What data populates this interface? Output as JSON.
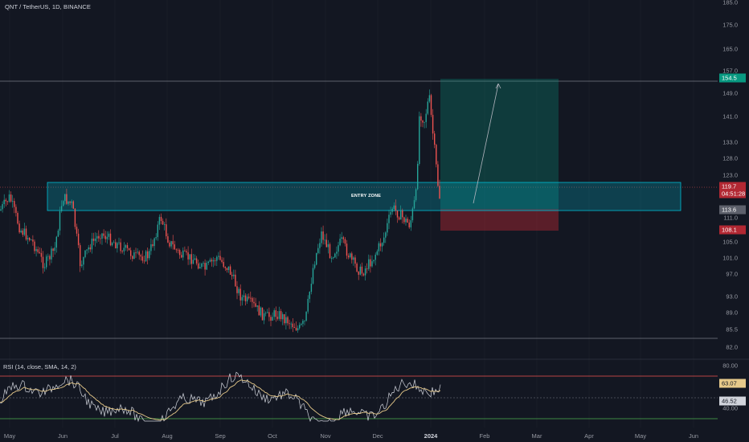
{
  "header": {
    "symbol_line": "QNT / TetherUS, 1D, BINANCE"
  },
  "indicator": {
    "rsi_line": "RSI (14, close, SMA, 14, 2)"
  },
  "price_axis": {
    "ticks": [
      "185.0",
      "175.0",
      "165.0",
      "157.0",
      "149.0",
      "141.0",
      "133.0",
      "128.0",
      "123.0",
      "116.0",
      "111.0",
      "105.0",
      "101.0",
      "97.0",
      "93.0",
      "89.0",
      "85.5",
      "82.0"
    ],
    "rsi_ticks": [
      "80.00",
      "40.00"
    ]
  },
  "tags": {
    "target": "154.5",
    "current_price": "119.7",
    "countdown": "04:51:28",
    "entry": "113.6",
    "stop": "108.1",
    "rsi_value": "63.07",
    "rsi_sma": "46.52"
  },
  "time_axis": [
    {
      "label": "May",
      "bold": false
    },
    {
      "label": "Jun",
      "bold": false
    },
    {
      "label": "Jul",
      "bold": false
    },
    {
      "label": "Aug",
      "bold": false
    },
    {
      "label": "Sep",
      "bold": false
    },
    {
      "label": "Oct",
      "bold": false
    },
    {
      "label": "Nov",
      "bold": false
    },
    {
      "label": "Dec",
      "bold": false
    },
    {
      "label": "2024",
      "bold": true
    },
    {
      "label": "Feb",
      "bold": false
    },
    {
      "label": "Mar",
      "bold": false
    },
    {
      "label": "Apr",
      "bold": false
    },
    {
      "label": "May",
      "bold": false
    },
    {
      "label": "Jun",
      "bold": false
    }
  ],
  "annotations": {
    "entry_zone": "ENTRY ZONE"
  },
  "colors": {
    "background": "#131722",
    "up": "#26a69a",
    "down": "#ef5350",
    "zone": "#00bcd4",
    "target_tag": "#089981",
    "stop_tag": "#b22833",
    "current_tag": "#b22833",
    "rsi_line": "#d1d4dc",
    "rsi_sma": "#e6c98a"
  }
}
